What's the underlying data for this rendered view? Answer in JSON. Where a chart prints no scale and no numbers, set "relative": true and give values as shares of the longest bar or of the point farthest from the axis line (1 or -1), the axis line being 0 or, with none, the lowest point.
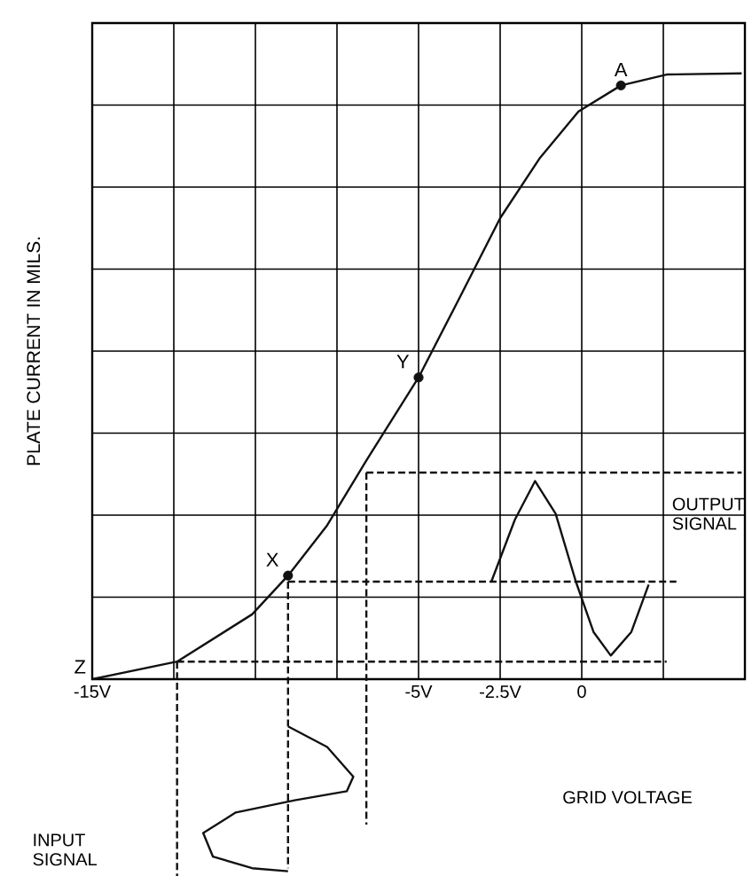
{
  "chart_data": {
    "type": "line",
    "relative": true,
    "xlabel": "GRID VOLTAGE",
    "ylabel": "PLATE CURRENT IN MILS.",
    "xlim": [
      -15,
      5
    ],
    "xticks": [
      {
        "value": -15,
        "label": "-15V"
      },
      {
        "value": -12.5,
        "label": null
      },
      {
        "value": -10,
        "label": null
      },
      {
        "value": -7.5,
        "label": null
      },
      {
        "value": -5,
        "label": "-5V"
      },
      {
        "value": -2.5,
        "label": "-2.5V"
      },
      0,
      {
        "value": 2.5,
        "label": null
      },
      {
        "value": 5,
        "label": null
      }
    ],
    "grid": true,
    "series": [
      {
        "color": "#111111",
        "marker": "none",
        "line_style": "solid",
        "x": [
          -15,
          -12.4,
          -10.1,
          -9.0,
          -7.8,
          -6.6,
          -5.0,
          -3.7,
          -2.5,
          -1.3,
          -0.1,
          1.2,
          2.6,
          4.9
        ],
        "values": [
          0,
          0.029,
          0.107,
          0.171,
          0.254,
          0.361,
          0.498,
          0.634,
          0.761,
          0.859,
          0.937,
          0.98,
          0.998,
          1.0
        ]
      },
      {
        "type": "scatter",
        "color": "#111111",
        "marker": "circle",
        "x": [
          -9.0,
          -5.0,
          1.2
        ],
        "values": [
          0.171,
          0.498,
          0.98
        ]
      },
      {
        "type": "line",
        "color": "#111111",
        "marker": "none",
        "line_style": "solid",
        "x": [
          -2.77,
          -2.05,
          -1.43,
          -0.8,
          -0.18,
          0.36,
          0.89,
          1.52,
          2.05
        ],
        "values": [
          0.161,
          0.263,
          0.327,
          0.273,
          0.161,
          0.078,
          0.039,
          0.078,
          0.156
        ]
      },
      {
        "type": "line",
        "color": "#111111",
        "marker": "none",
        "line_style": "solid",
        "x": [
          -9.0,
          -7.8,
          -7.0,
          -7.2,
          -8.8,
          -10.6,
          -11.6,
          -11.3,
          -10.1,
          -9.0
        ],
        "values": [
          -0.078,
          -0.112,
          -0.161,
          -0.185,
          -0.2,
          -0.22,
          -0.254,
          -0.293,
          -0.312,
          -0.317
        ]
      },
      {
        "type": "line",
        "color": "#111111",
        "marker": "none",
        "line_style": "dashed",
        "x": [
          -12.4,
          2.6
        ],
        "values": [
          0.029,
          0.029
        ]
      },
      {
        "type": "line",
        "color": "#111111",
        "marker": "none",
        "line_style": "dashed",
        "x": [
          -9.0,
          2.9
        ],
        "values": [
          0.161,
          0.161
        ]
      },
      {
        "type": "line",
        "color": "#111111",
        "marker": "none",
        "line_style": "dashed",
        "x": [
          -6.6,
          4.9
        ],
        "values": [
          0.341,
          0.341
        ]
      },
      {
        "type": "line",
        "color": "#111111",
        "marker": "none",
        "line_style": "dashed",
        "x": [
          -12.4,
          -12.4
        ],
        "values": [
          0.029,
          -0.33
        ]
      },
      {
        "type": "line",
        "color": "#111111",
        "marker": "none",
        "line_style": "dashed",
        "x": [
          -9.0,
          -9.0
        ],
        "values": [
          0.161,
          -0.312
        ]
      },
      {
        "type": "line",
        "color": "#111111",
        "marker": "none",
        "line_style": "dashed",
        "x": [
          -6.6,
          -6.6
        ],
        "values": [
          0.341,
          -0.24
        ]
      }
    ],
    "annotations": [
      {
        "text": "X",
        "x": -9.0,
        "y": 0.171
      },
      {
        "text": "Y",
        "x": -5.0,
        "y": 0.498
      },
      {
        "text": "A",
        "x": 1.2,
        "y": 0.98
      },
      {
        "text": "Z",
        "x": -15,
        "y": 0
      },
      "OUTPUT SIGNAL",
      "INPUT SIGNAL"
    ]
  }
}
